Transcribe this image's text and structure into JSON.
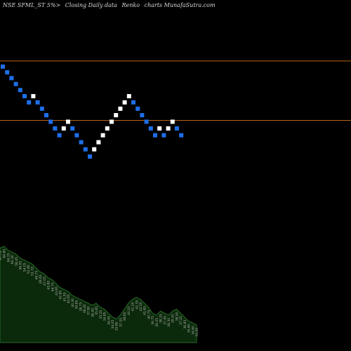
{
  "header": {
    "symbol": "NSE SFML_ST 5%>",
    "chart_kind": "Closing Daily data",
    "chart_type": "Renko",
    "source": "charts MunafaSutra.com"
  },
  "colors": {
    "background": "#000000",
    "up_brick": "#ffffff",
    "down_brick": "#1e6fe8",
    "level_line": "#b8621a",
    "volume_fill": "#0b2a0b",
    "volume_stroke": "#2a6a2a",
    "volume_label": "#b0b0b0"
  },
  "chart_data": {
    "type": "renko",
    "scale": "log",
    "ylim": [
      38.0,
      72.0
    ],
    "reference_levels": [
      63.0,
      53.2
    ],
    "bricks": [
      {
        "dir": "down",
        "value": 62.0
      },
      {
        "dir": "down",
        "value": 61.0
      },
      {
        "dir": "down",
        "value": 60.0
      },
      {
        "dir": "down",
        "value": 59.0
      },
      {
        "dir": "down",
        "value": 58.0
      },
      {
        "dir": "down",
        "value": 57.0
      },
      {
        "dir": "down",
        "value": 56.0
      },
      {
        "dir": "up",
        "value": 57.0
      },
      {
        "dir": "down",
        "value": 56.0
      },
      {
        "dir": "down",
        "value": 55.0
      },
      {
        "dir": "down",
        "value": 54.0
      },
      {
        "dir": "down",
        "value": 53.0
      },
      {
        "dir": "down",
        "value": 52.0
      },
      {
        "dir": "down",
        "value": 51.0
      },
      {
        "dir": "up",
        "value": 52.0
      },
      {
        "dir": "up",
        "value": 53.0
      },
      {
        "dir": "down",
        "value": 52.0
      },
      {
        "dir": "down",
        "value": 51.0
      },
      {
        "dir": "down",
        "value": 50.0
      },
      {
        "dir": "down",
        "value": 49.0
      },
      {
        "dir": "down",
        "value": 48.0
      },
      {
        "dir": "up",
        "value": 49.0
      },
      {
        "dir": "up",
        "value": 50.0
      },
      {
        "dir": "up",
        "value": 51.0
      },
      {
        "dir": "up",
        "value": 52.0
      },
      {
        "dir": "up",
        "value": 53.0
      },
      {
        "dir": "up",
        "value": 54.0
      },
      {
        "dir": "up",
        "value": 55.0
      },
      {
        "dir": "up",
        "value": 56.0
      },
      {
        "dir": "up",
        "value": 57.0
      },
      {
        "dir": "down",
        "value": 56.0
      },
      {
        "dir": "down",
        "value": 55.0
      },
      {
        "dir": "down",
        "value": 54.0
      },
      {
        "dir": "down",
        "value": 53.0
      },
      {
        "dir": "down",
        "value": 52.0
      },
      {
        "dir": "down",
        "value": 51.0
      },
      {
        "dir": "up",
        "value": 52.0
      },
      {
        "dir": "down",
        "value": 51.0
      },
      {
        "dir": "up",
        "value": 52.0
      },
      {
        "dir": "up",
        "value": 53.0
      },
      {
        "dir": "down",
        "value": 52.0
      },
      {
        "dir": "down",
        "value": 51.0
      }
    ],
    "volume_profile": [
      96,
      98,
      94,
      92,
      90,
      86,
      84,
      82,
      80,
      76,
      72,
      70,
      66,
      64,
      60,
      56,
      54,
      52,
      48,
      46,
      44,
      42,
      40,
      38,
      40,
      36,
      34,
      30,
      26,
      24,
      28,
      34,
      40,
      44,
      46,
      44,
      40,
      36,
      30,
      28,
      32,
      30,
      28,
      32,
      34,
      30,
      26,
      22,
      20,
      18
    ],
    "volume_labels": [
      "67.75",
      "64.80",
      "64.15",
      "60.30",
      "58.45",
      "56.00",
      "54.05",
      "52.80",
      "51.33",
      "49.75",
      "48.61",
      "47.05",
      "45.80",
      "44.70",
      "43.65",
      "42.80",
      "41.55",
      "40.65",
      "40.30",
      "39.65",
      "38.75",
      "38.40",
      "37.80",
      "36.90",
      "35.65",
      "35.20",
      "34.85",
      "34.40",
      "34.05",
      "35.80",
      "37.20",
      "38.60",
      "40.10",
      "41.20",
      "42.35",
      "42.50",
      "41.65",
      "40.75",
      "39.75",
      "39.25",
      "38.25",
      "37.45",
      "38.30",
      "39.10",
      "38.50",
      "37.20",
      "36.85",
      "35.80",
      "34.60",
      "33.20"
    ]
  }
}
